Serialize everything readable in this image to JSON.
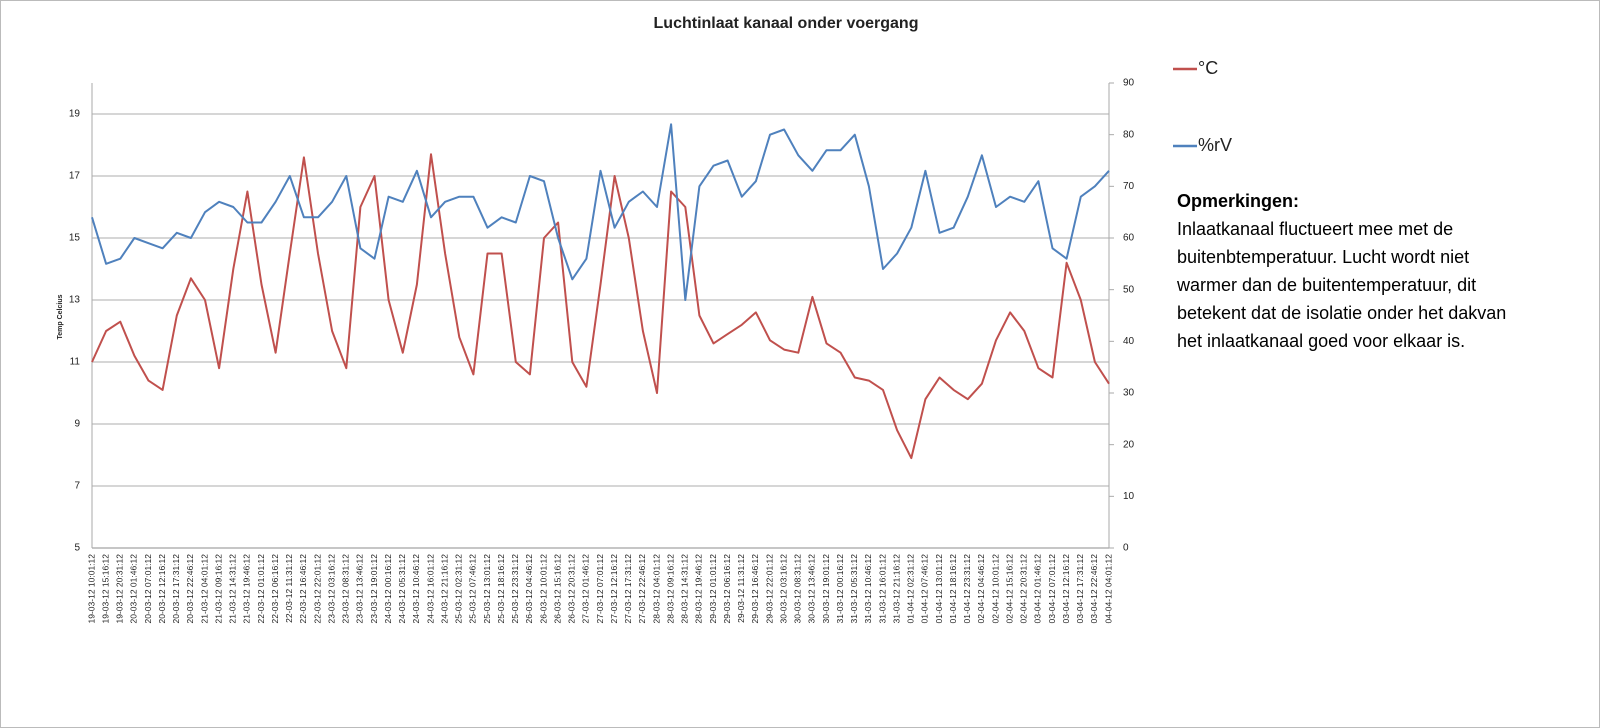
{
  "chart_data": {
    "type": "line",
    "title": "Luchtinlaat kanaal onder voergang",
    "y_label": "Temp Celcius",
    "categories": [
      "19-03-12 10:01:12",
      "19-03-12 15:16:12",
      "19-03-12 20:31:12",
      "20-03-12 01:46:12",
      "20-03-12 07:01:12",
      "20-03-12 12:16:12",
      "20-03-12 17:31:12",
      "20-03-12 22:46:12",
      "21-03-12 04:01:12",
      "21-03-12 09:16:12",
      "21-03-12 14:31:12",
      "21-03-12 19:46:12",
      "22-03-12 01:01:12",
      "22-03-12 06:16:12",
      "22-03-12 11:31:12",
      "22-03-12 16:46:12",
      "22-03-12 22:01:12",
      "23-03-12 03:16:12",
      "23-03-12 08:31:12",
      "23-03-12 13:46:12",
      "23-03-12 19:01:12",
      "24-03-12 00:16:12",
      "24-03-12 05:31:12",
      "24-03-12 10:46:12",
      "24-03-12 16:01:12",
      "24-03-12 21:16:12",
      "25-03-12 02:31:12",
      "25-03-12 07:46:12",
      "25-03-12 13:01:12",
      "25-03-12 18:16:12",
      "25-03-12 23:31:12",
      "26-03-12 04:46:12",
      "26-03-12 10:01:12",
      "26-03-12 15:16:12",
      "26-03-12 20:31:12",
      "27-03-12 01:46:12",
      "27-03-12 07:01:12",
      "27-03-12 12:16:12",
      "27-03-12 17:31:12",
      "27-03-12 22:46:12",
      "28-03-12 04:01:12",
      "28-03-12 09:16:12",
      "28-03-12 14:31:12",
      "28-03-12 19:46:12",
      "29-03-12 01:01:12",
      "29-03-12 06:16:12",
      "29-03-12 11:31:12",
      "29-03-12 16:46:12",
      "29-03-12 22:01:12",
      "30-03-12 03:16:12",
      "30-03-12 08:31:12",
      "30-03-12 13:46:12",
      "30-03-12 19:01:12",
      "31-03-12 00:16:12",
      "31-03-12 05:31:12",
      "31-03-12 10:46:12",
      "31-03-12 16:01:12",
      "31-03-12 21:16:12",
      "01-04-12 02:31:12",
      "01-04-12 07:46:12",
      "01-04-12 13:01:12",
      "01-04-12 18:16:12",
      "01-04-12 23:31:12",
      "02-04-12 04:46:12",
      "02-04-12 10:01:12",
      "02-04-12 15:16:12",
      "02-04-12 20:31:12",
      "03-04-12 01:46:12",
      "03-04-12 07:01:12",
      "03-04-12 12:16:12",
      "03-04-12 17:31:12",
      "03-04-12 22:46:12",
      "04-04-12 04:01:12"
    ],
    "series": [
      {
        "name": "°C",
        "color": "#c0504d",
        "axis": "y",
        "values": [
          11.0,
          12.0,
          12.3,
          11.2,
          10.4,
          10.1,
          12.5,
          13.7,
          13.0,
          10.8,
          14.0,
          16.5,
          13.5,
          11.3,
          14.5,
          17.6,
          14.5,
          12.0,
          10.8,
          16.0,
          17.0,
          13.0,
          11.3,
          13.5,
          17.7,
          14.5,
          11.8,
          10.6,
          14.5,
          14.5,
          11.0,
          10.6,
          15.0,
          15.5,
          11.0,
          10.2,
          13.5,
          17.0,
          15.0,
          12.0,
          10.0,
          16.5,
          16.0,
          12.5,
          11.6,
          11.9,
          12.2,
          12.6,
          11.7,
          11.4,
          11.3,
          13.1,
          11.6,
          11.3,
          10.5,
          10.4,
          10.1,
          8.8,
          7.9,
          9.8,
          10.5,
          10.1,
          9.8,
          10.3,
          11.7,
          12.6,
          12.0,
          10.8,
          10.5,
          14.2,
          13.0,
          11.0,
          10.3
        ]
      },
      {
        "name": "%rV",
        "color": "#4f81bd",
        "axis": "y2",
        "values": [
          64,
          55,
          56,
          60,
          59,
          58,
          61,
          60,
          65,
          67,
          66,
          63,
          63,
          67,
          72,
          64,
          64,
          67,
          72,
          58,
          56,
          68,
          67,
          73,
          64,
          67,
          68,
          68,
          62,
          64,
          63,
          72,
          71,
          60,
          52,
          56,
          73,
          62,
          67,
          69,
          66,
          82,
          48,
          70,
          74,
          75,
          68,
          71,
          80,
          81,
          76,
          73,
          77,
          77,
          80,
          70,
          54,
          57,
          62,
          73,
          61,
          62,
          68,
          76,
          66,
          68,
          67,
          71,
          58,
          56,
          68,
          70,
          73
        ]
      }
    ],
    "ylim": [
      5,
      20
    ],
    "yticks": [
      5,
      7,
      9,
      11,
      13,
      15,
      17,
      19
    ],
    "y2lim": [
      0,
      90
    ],
    "y2ticks": [
      0,
      10,
      20,
      30,
      40,
      50,
      60,
      70,
      80,
      90
    ],
    "grid": true,
    "legend": "right",
    "annotation": {
      "title": "Opmerkingen:",
      "text": "Inlaatkanaal fluctueert mee met de buitenbtemperatuur. Lucht wordt niet warmer dan de buitentemperatuur, dit betekent dat de isolatie onder het dakvan het inlaatkanaal  goed voor elkaar is."
    }
  }
}
